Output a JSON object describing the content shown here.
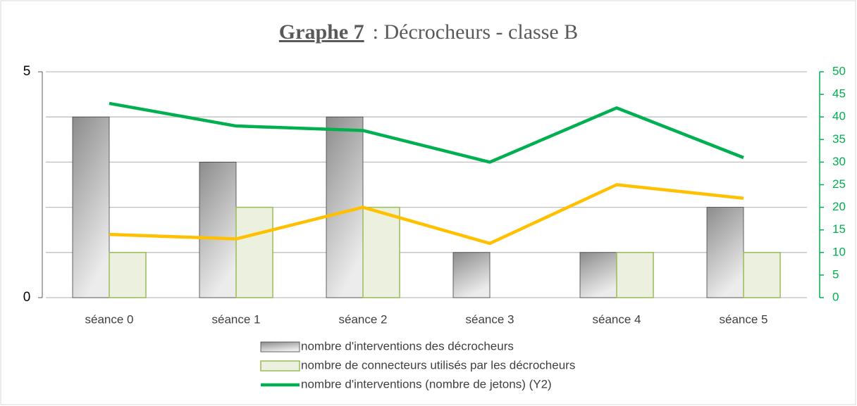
{
  "chart_data": {
    "type": "bar_line",
    "title": {
      "bold": "Graphe 7",
      "rest": ": Décrocheurs - classe  B"
    },
    "categories": [
      "séance 0",
      "séance 1",
      "séance 2",
      "séance 3",
      "séance 4",
      "séance 5"
    ],
    "series": [
      {
        "name": "nombre d'interventions des décrocheurs",
        "type": "bar",
        "color": "#a6a6a6",
        "values": [
          4,
          3,
          4,
          1,
          1,
          2
        ]
      },
      {
        "name": "nombre de connecteurs utilisés par les décrocheurs",
        "type": "bar",
        "color": "#ebf1de",
        "stroke": "#9bbb59",
        "values": [
          1,
          2,
          2,
          0,
          1,
          1
        ]
      },
      {
        "name": "nombre d'interventions (nombre de jetons) (Y2)",
        "type": "line",
        "axis": "y2",
        "color": "#00b050",
        "values": [
          43,
          38,
          37,
          30,
          42,
          31
        ]
      },
      {
        "type": "line",
        "axis": "y2",
        "color": "#ffc000",
        "values": [
          14,
          13,
          20,
          12,
          25,
          22
        ]
      }
    ],
    "ylim": [
      0,
      5
    ],
    "yticks": [
      0,
      5
    ],
    "y2lim": [
      0,
      50
    ],
    "y2ticks": [
      0,
      5,
      10,
      15,
      20,
      25,
      30,
      35,
      40,
      45,
      50
    ],
    "y2color": "#00b050",
    "grid": true
  }
}
